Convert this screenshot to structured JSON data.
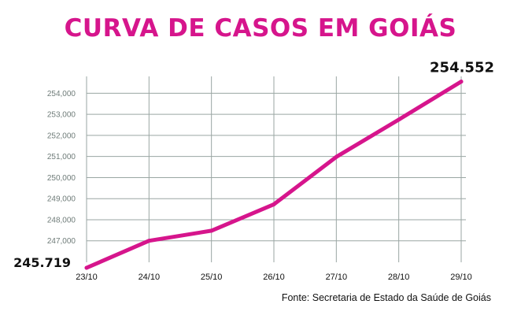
{
  "chart_data": {
    "type": "line",
    "title": "CURVA DE CASOS EM GOIÁS",
    "x": [
      "23/10",
      "24/10",
      "25/10",
      "26/10",
      "27/10",
      "28/10",
      "29/10"
    ],
    "series": [
      {
        "values": [
          245719,
          247000,
          247480,
          248730,
          250980,
          252750,
          254552
        ]
      }
    ],
    "y_ticks": [
      {
        "value": 247000,
        "label": "247,000"
      },
      {
        "value": 248000,
        "label": "248,000"
      },
      {
        "value": 249000,
        "label": "249,000"
      },
      {
        "value": 250000,
        "label": "250,000"
      },
      {
        "value": 251000,
        "label": "251,000"
      },
      {
        "value": 252000,
        "label": "252,000"
      },
      {
        "value": 253000,
        "label": "253,000"
      },
      {
        "value": 254000,
        "label": "254,000"
      }
    ],
    "ylim": [
      245719,
      254800
    ],
    "grid": true,
    "line_color": "#d6158c",
    "data_labels": [
      {
        "index": 0,
        "text": "245.719"
      },
      {
        "index": 6,
        "text": "254.552"
      }
    ],
    "source": "Fonte: Secretaria de Estado da Saúde de Goiás"
  }
}
